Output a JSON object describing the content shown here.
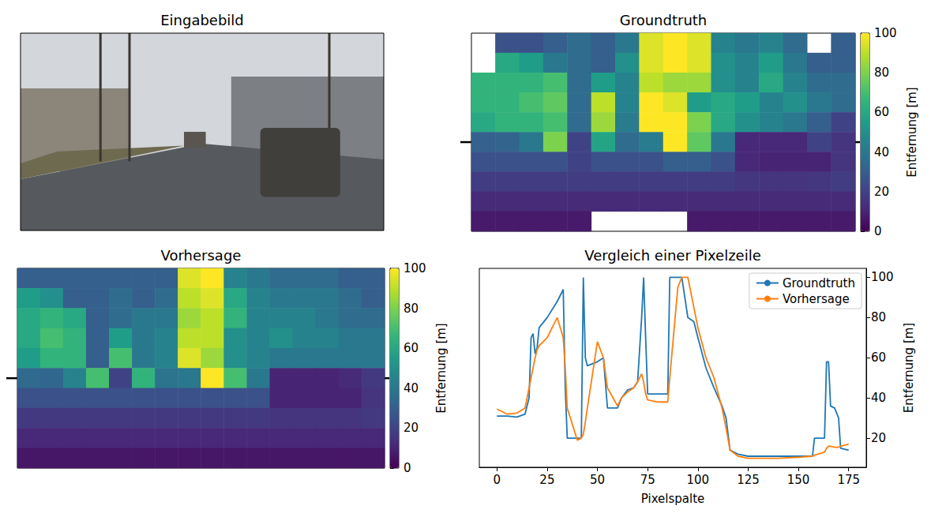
{
  "chart_data": [
    {
      "type": "image",
      "title": "Eingabebild"
    },
    {
      "type": "heatmap",
      "title": "Groundtruth",
      "tick_labels": false,
      "cells": [
        [
          null,
          25,
          25,
          30,
          35,
          30,
          40,
          95,
          100,
          95,
          45,
          40,
          45,
          35,
          null,
          30
        ],
        [
          null,
          60,
          55,
          40,
          35,
          30,
          50,
          95,
          100,
          95,
          50,
          45,
          55,
          40,
          30,
          30
        ],
        [
          65,
          65,
          65,
          70,
          35,
          55,
          45,
          90,
          85,
          85,
          50,
          45,
          60,
          45,
          35,
          35
        ],
        [
          65,
          65,
          70,
          75,
          35,
          90,
          45,
          100,
          95,
          55,
          60,
          55,
          45,
          50,
          40,
          35
        ],
        [
          60,
          65,
          65,
          70,
          35,
          85,
          42,
          100,
          100,
          80,
          60,
          50,
          45,
          40,
          30,
          20
        ],
        [
          31,
          32,
          40,
          80,
          20,
          58,
          35,
          42,
          100,
          75,
          40,
          11,
          11,
          11,
          20,
          15
        ],
        [
          25,
          25,
          25,
          25,
          20,
          25,
          25,
          25,
          30,
          30,
          25,
          11,
          10,
          10,
          10,
          15
        ],
        [
          18,
          18,
          18,
          18,
          18,
          18,
          18,
          18,
          18,
          18,
          18,
          16,
          15,
          15,
          16,
          18
        ],
        [
          12,
          12,
          12,
          12,
          12,
          12,
          12,
          12,
          12,
          12,
          12,
          12,
          12,
          12,
          12,
          12
        ],
        [
          7,
          7,
          7,
          7,
          7,
          null,
          null,
          null,
          null,
          7,
          7,
          7,
          7,
          7,
          7,
          7
        ]
      ],
      "colorbar": {
        "range": [
          0,
          100
        ],
        "ticks": [
          0,
          20,
          40,
          60,
          80,
          100
        ],
        "label": "Entfernung [m]"
      }
    },
    {
      "type": "heatmap",
      "title": "Vorhersage",
      "tick_labels": false,
      "cells": [
        [
          30,
          30,
          30,
          30,
          30,
          30,
          30,
          95,
          100,
          45,
          40,
          35,
          35,
          35,
          30,
          30
        ],
        [
          55,
          50,
          30,
          30,
          35,
          30,
          35,
          90,
          95,
          60,
          45,
          40,
          40,
          40,
          35,
          30
        ],
        [
          60,
          65,
          60,
          30,
          35,
          40,
          40,
          85,
          90,
          65,
          45,
          45,
          45,
          40,
          35,
          35
        ],
        [
          60,
          70,
          65,
          30,
          55,
          40,
          45,
          90,
          90,
          50,
          45,
          50,
          45,
          45,
          40,
          40
        ],
        [
          55,
          65,
          65,
          30,
          70,
          40,
          45,
          95,
          85,
          50,
          45,
          40,
          40,
          40,
          40,
          40
        ],
        [
          34,
          33,
          45,
          70,
          20,
          65,
          38,
          40,
          100,
          70,
          40,
          10,
          10,
          10,
          12,
          17
        ],
        [
          25,
          25,
          25,
          25,
          25,
          25,
          25,
          25,
          25,
          25,
          25,
          10,
          10,
          10,
          10,
          15
        ],
        [
          17,
          17,
          17,
          17,
          17,
          17,
          17,
          17,
          17,
          17,
          17,
          15,
          15,
          15,
          15,
          17
        ],
        [
          11,
          11,
          11,
          11,
          11,
          11,
          11,
          11,
          11,
          11,
          11,
          11,
          11,
          11,
          11,
          11
        ],
        [
          6,
          6,
          6,
          6,
          6,
          6,
          6,
          6,
          6,
          6,
          6,
          6,
          6,
          6,
          6,
          6
        ]
      ],
      "colorbar": {
        "range": [
          0,
          100
        ],
        "ticks": [
          0,
          20,
          40,
          60,
          80,
          100
        ],
        "label": "Entfernung [m]"
      }
    },
    {
      "type": "line",
      "title": "Vergleich einer Pixelzeile",
      "x_label": "Pixelspalte",
      "y_label": "Entfernung [m]",
      "xlim": [
        -8.75,
        183.75
      ],
      "xticks": [
        0,
        25,
        50,
        75,
        100,
        125,
        150,
        175
      ],
      "ylim": [
        5.5,
        104.5
      ],
      "yticks": [
        20,
        40,
        60,
        80,
        100
      ],
      "grid": false,
      "legend": "upper right",
      "x": [
        0,
        5,
        10,
        14,
        16,
        17,
        18,
        19,
        20,
        21,
        25,
        30,
        33,
        34,
        35,
        40,
        42,
        43,
        44,
        45,
        50,
        53,
        55,
        60,
        62,
        65,
        68,
        70,
        72,
        73,
        74,
        75,
        80,
        85,
        86,
        90,
        92,
        95,
        98,
        100,
        104,
        108,
        112,
        114,
        116,
        120,
        125,
        130,
        140,
        150,
        157,
        158,
        163,
        164,
        165,
        166,
        168,
        170,
        171,
        175
      ],
      "series": [
        {
          "name": "Groundtruth",
          "color": "#1f77b4",
          "values": [
            31,
            31,
            30.5,
            32,
            40,
            70,
            72,
            62,
            65,
            75,
            80,
            88,
            94,
            45,
            20,
            20,
            20,
            100,
            60,
            56,
            58,
            60,
            35,
            35,
            40,
            44,
            45,
            48,
            80,
            100,
            70,
            42,
            42,
            42,
            100,
            100,
            100,
            80,
            78,
            70,
            55,
            45,
            36,
            30,
            14,
            12,
            11,
            11,
            11,
            11,
            11,
            20,
            20,
            58,
            58,
            36,
            35,
            30,
            15,
            14
          ]
        },
        {
          "name": "Vorhersage",
          "color": "#ff7f0e",
          "values": [
            34.5,
            32,
            32.5,
            35,
            45,
            50,
            55,
            60,
            64,
            66,
            70,
            80,
            70,
            55,
            35,
            19,
            20,
            22,
            28,
            35,
            68,
            60,
            45,
            36,
            40,
            43,
            45,
            48,
            52,
            48,
            42,
            39,
            38,
            38,
            50,
            95,
            100,
            100,
            85,
            75,
            60,
            50,
            35,
            25,
            14,
            11,
            10,
            10,
            10,
            10.5,
            11,
            11.5,
            13,
            15,
            16,
            16,
            15.5,
            15.5,
            16,
            17
          ]
        }
      ]
    }
  ]
}
